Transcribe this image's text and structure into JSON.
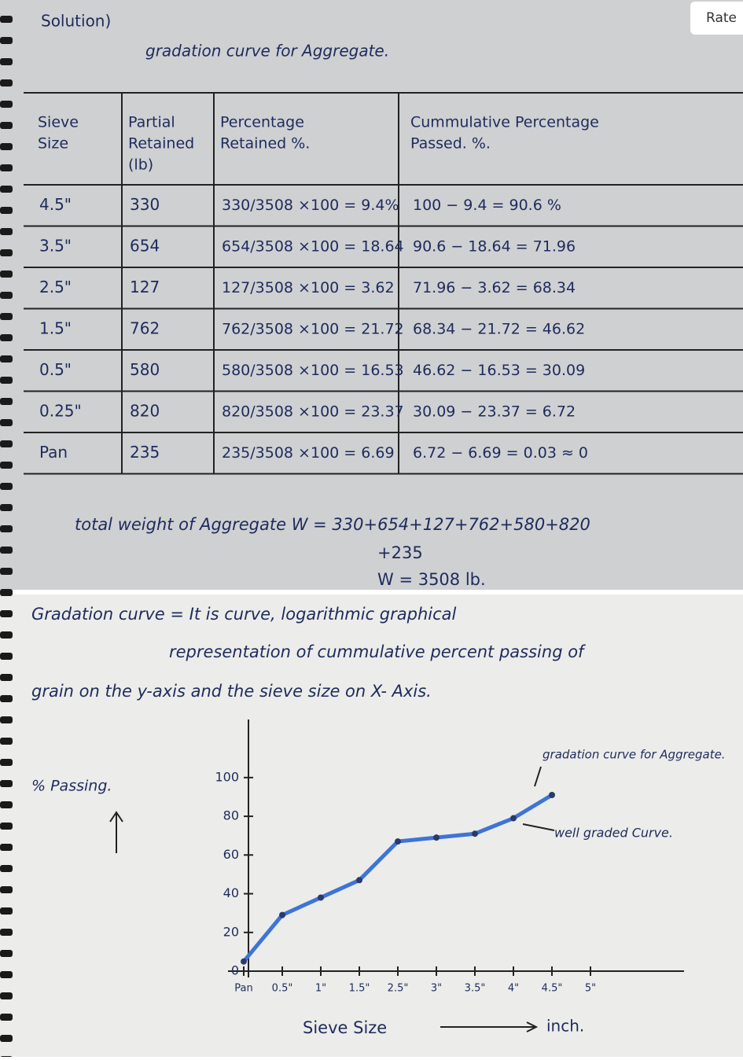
{
  "rate_button": "Rate",
  "notes": {
    "heading": "Solution)",
    "subtitle": "gradation curve for Aggregate.",
    "table": {
      "headers": [
        [
          "Sieve",
          "Size"
        ],
        [
          "Partial",
          "Retained",
          "(lb)"
        ],
        [
          "Percentage",
          "Retained  %."
        ],
        [
          "Cummulative Percentage",
          "Passed. %."
        ]
      ],
      "rows": [
        [
          "4.5\"",
          "330",
          "330/3508 ×100 = 9.4%",
          "100 − 9.4 = 90.6 %"
        ],
        [
          "3.5\"",
          "654",
          "654/3508 ×100 = 18.64",
          "90.6 − 18.64 = 71.96"
        ],
        [
          "2.5\"",
          "127",
          "127/3508 ×100 = 3.62",
          "71.96 − 3.62 = 68.34"
        ],
        [
          "1.5\"",
          "762",
          "762/3508 ×100 = 21.72",
          "68.34 − 21.72 = 46.62"
        ],
        [
          "0.5\"",
          "580",
          "580/3508 ×100 = 16.53",
          "46.62 − 16.53 = 30.09"
        ],
        [
          "0.25\"",
          "820",
          "820/3508 ×100 = 23.37",
          "30.09 − 23.37 = 6.72"
        ],
        [
          "Pan",
          "235",
          "235/3508 ×100 = 6.69",
          "6.72 − 6.69 = 0.03 ≈ 0"
        ]
      ]
    },
    "total": [
      "total weight of Aggregate W = 330+654+127+762+580+820",
      "+235",
      "W = 3508 lb."
    ]
  },
  "definition": [
    "Gradation curve = It is curve, logarithmic graphical",
    "representation of cummulative percent passing of",
    "grain on the y-axis and the sieve size on X- Axis."
  ],
  "chart_data": {
    "type": "line",
    "y_label": "% Passing.",
    "x_label": "Sieve Size",
    "x_unit": "inch.",
    "annotations": [
      "gradation curve for Aggregate.",
      "well graded Curve."
    ],
    "categories": [
      "Pan",
      "0.5\"",
      "1\"",
      "1.5\"",
      "2.5\"",
      "3\"",
      "3.5\"",
      "4\"",
      "4.5\"",
      "5\""
    ],
    "values": [
      5,
      29,
      38,
      47,
      67,
      69,
      71,
      79,
      91,
      null
    ],
    "color": "#3f74d6",
    "ylim": [
      0,
      130
    ],
    "yticks": [
      0,
      20,
      40,
      60,
      80,
      100
    ]
  }
}
